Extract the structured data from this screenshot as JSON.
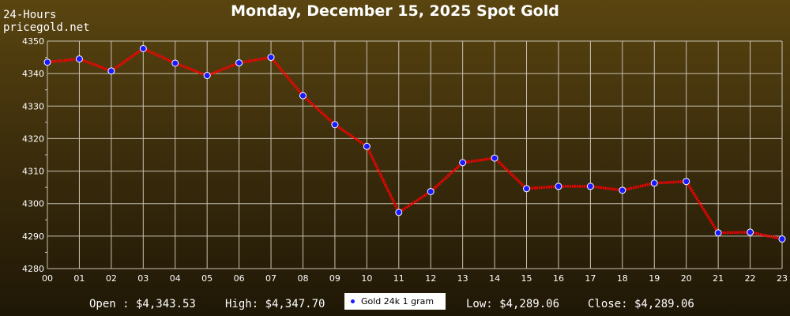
{
  "header": {
    "corner_line1": "24-Hours",
    "corner_line2": "pricegold.net",
    "title": "Monday, December 15, 2025 Spot Gold"
  },
  "footer": {
    "open": "Open : $4,343.53",
    "high": "High: $4,347.70",
    "low": "Low: $4,289.06",
    "close": "Close: $4,289.06"
  },
  "colors": {
    "line": "#ff0000",
    "marker": "#1a1aff",
    "grid": "#c8c2b0"
  },
  "chart_data": {
    "type": "line",
    "title": "Monday, December 15, 2025 Spot Gold",
    "xlabel": "",
    "ylabel": "",
    "categories": [
      "00",
      "01",
      "02",
      "03",
      "04",
      "05",
      "06",
      "07",
      "08",
      "09",
      "10",
      "11",
      "12",
      "13",
      "14",
      "15",
      "16",
      "17",
      "18",
      "19",
      "20",
      "21",
      "22",
      "23"
    ],
    "ylim": [
      4280,
      4350
    ],
    "yticks": [
      4280,
      4290,
      4300,
      4310,
      4320,
      4330,
      4340,
      4350
    ],
    "grid": true,
    "legend": "bottom-center",
    "series": [
      {
        "name": "Gold 24k 1 gram",
        "values": [
          4343.5,
          4344.5,
          4340.8,
          4347.7,
          4343.2,
          4339.4,
          4343.3,
          4345.0,
          4333.2,
          4324.3,
          4317.6,
          4297.3,
          4303.7,
          4312.6,
          4314.0,
          4304.6,
          4305.3,
          4305.3,
          4304.1,
          4306.3,
          4306.8,
          4291.0,
          4291.2,
          4289.1
        ]
      }
    ]
  }
}
